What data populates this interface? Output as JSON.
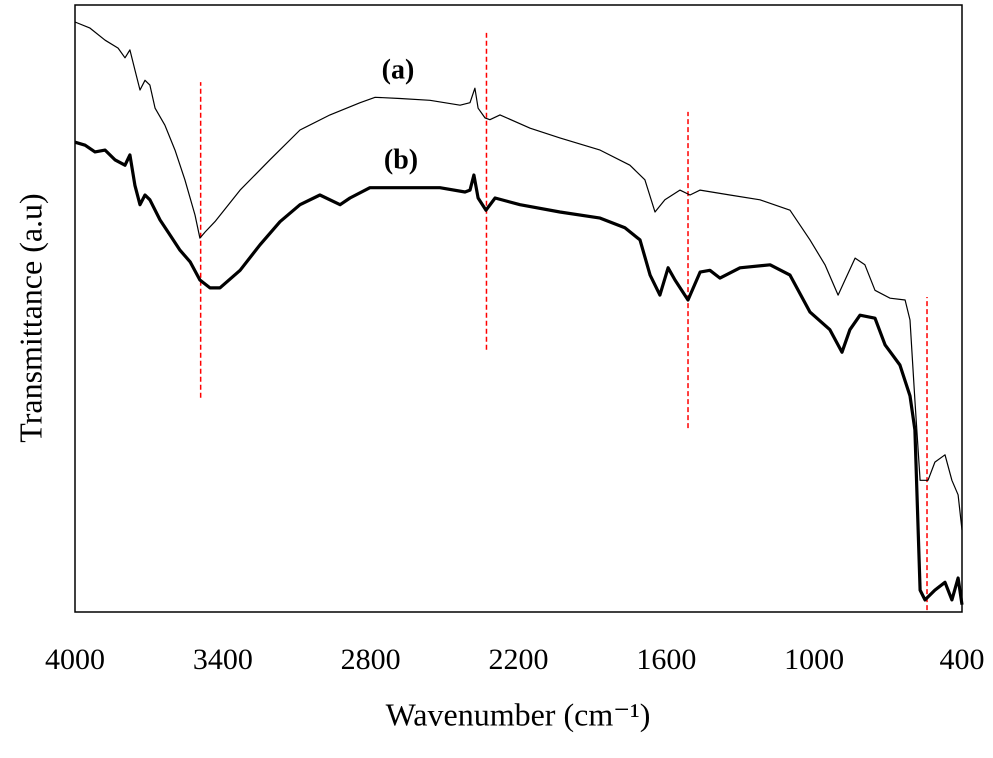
{
  "chart_data": {
    "type": "line",
    "xlabel": "Wavenumber (cm⁻¹)",
    "ylabel": "Transmittance (a.u)",
    "xlim": [
      4000,
      400
    ],
    "xticks": [
      4000,
      3400,
      2800,
      2200,
      1600,
      1000,
      400
    ],
    "ylim": [
      0,
      100
    ],
    "series": [
      {
        "name": "(a)",
        "color": "#000000",
        "line_width": 1.2,
        "x": [
          4000,
          3939,
          3878,
          3825,
          3797,
          3777,
          3757,
          3736,
          3716,
          3696,
          3675,
          3635,
          3594,
          3554,
          3513,
          3493,
          3472,
          3432,
          3330,
          3209,
          3087,
          2965,
          2843,
          2782,
          2681,
          2559,
          2437,
          2397,
          2377,
          2364,
          2336,
          2316,
          2275,
          2153,
          2032,
          1869,
          1748,
          1687,
          1646,
          1606,
          1545,
          1504,
          1463,
          1342,
          1220,
          1098,
          1017,
          956,
          903,
          875,
          834,
          794,
          753,
          692,
          631,
          611,
          591,
          570,
          538,
          510,
          469,
          441,
          416,
          400
        ],
        "values": [
          97.2,
          96.2,
          94.2,
          92.9,
          91.3,
          92.6,
          89.3,
          86.0,
          87.6,
          86.8,
          83.0,
          80.2,
          76.1,
          71.2,
          65.4,
          61.6,
          62.6,
          64.3,
          69.5,
          74.5,
          79.4,
          81.9,
          83.9,
          84.8,
          84.6,
          84.3,
          83.5,
          83.9,
          86.3,
          83.0,
          81.4,
          81.1,
          81.9,
          79.7,
          78.1,
          76.1,
          73.6,
          71.2,
          65.9,
          67.9,
          69.5,
          68.7,
          69.5,
          68.7,
          67.9,
          66.2,
          61.3,
          57.2,
          52.2,
          54.7,
          58.3,
          57.2,
          53.0,
          51.7,
          51.4,
          48.1,
          34.9,
          21.7,
          21.7,
          24.7,
          25.9,
          21.7,
          19.3,
          13.5
        ]
      },
      {
        "name": "(b)",
        "color": "#000000",
        "line_width": 3.2,
        "x": [
          4000,
          3959,
          3919,
          3878,
          3838,
          3797,
          3777,
          3757,
          3736,
          3716,
          3696,
          3655,
          3614,
          3574,
          3533,
          3493,
          3452,
          3412,
          3330,
          3249,
          3168,
          3087,
          3006,
          2924,
          2884,
          2803,
          2681,
          2519,
          2417,
          2397,
          2381,
          2364,
          2332,
          2295,
          2194,
          2032,
          1869,
          1768,
          1707,
          1666,
          1626,
          1593,
          1565,
          1512,
          1463,
          1423,
          1382,
          1301,
          1179,
          1098,
          1017,
          936,
          887,
          855,
          814,
          753,
          712,
          652,
          611,
          591,
          570,
          550,
          510,
          469,
          441,
          416,
          400
        ],
        "values": [
          77.4,
          76.9,
          75.8,
          76.1,
          74.5,
          73.6,
          75.3,
          70.3,
          67.1,
          68.7,
          67.9,
          64.6,
          62.1,
          59.6,
          57.7,
          54.7,
          53.4,
          53.4,
          56.3,
          60.5,
          64.3,
          67.1,
          68.7,
          67.1,
          68.2,
          69.9,
          69.9,
          69.9,
          69.2,
          69.5,
          72.0,
          68.2,
          66.2,
          68.2,
          67.1,
          65.9,
          64.9,
          63.3,
          61.3,
          55.5,
          52.2,
          56.7,
          54.7,
          51.4,
          56.0,
          56.3,
          55.0,
          56.7,
          57.2,
          55.5,
          49.4,
          46.5,
          42.8,
          46.5,
          48.9,
          48.4,
          44.0,
          40.7,
          35.6,
          30.0,
          3.6,
          2.0,
          3.6,
          4.9,
          2.0,
          5.6,
          1.2
        ]
      }
    ],
    "vlines": [
      {
        "x": 3490,
        "ymin": 35.3,
        "ymax": 87.3,
        "color": "#ff0000"
      },
      {
        "x": 2330,
        "ymin": 43.2,
        "ymax": 95.4,
        "color": "#ff0000"
      },
      {
        "x": 1512,
        "ymin": 30.3,
        "ymax": 82.4,
        "color": "#ff0000"
      },
      {
        "x": 542,
        "ymin": 0.3,
        "ymax": 51.9,
        "color": "#ff0000"
      }
    ]
  }
}
